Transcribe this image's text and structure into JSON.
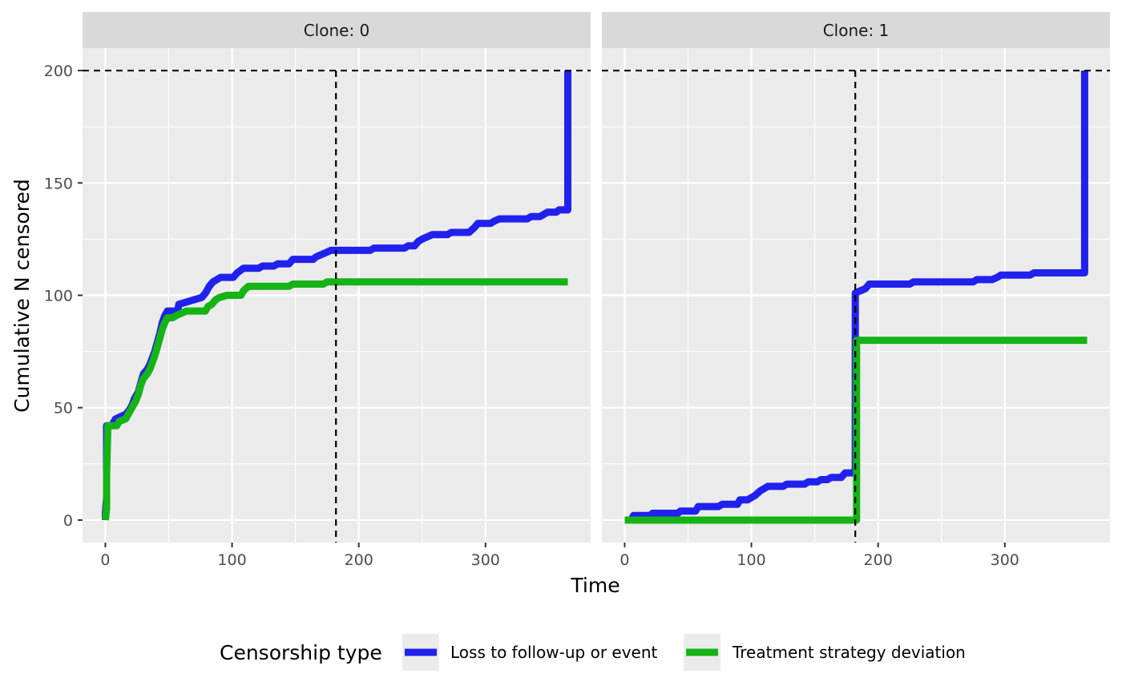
{
  "chart_data": {
    "type": "line",
    "line_shape": "step",
    "xlabel": "Time",
    "ylabel": "Cumulative N censored",
    "xlim": [
      -18,
      383
    ],
    "ylim": [
      -10,
      210
    ],
    "x_ticks": [
      0,
      100,
      200,
      300
    ],
    "y_ticks": [
      0,
      50,
      100,
      150,
      200
    ],
    "grid": true,
    "legend": {
      "title": "Censorship type",
      "position": "bottom",
      "entries": [
        {
          "label": "Loss to follow-up or event",
          "color": "#2121ee"
        },
        {
          "label": "Treatment strategy deviation",
          "color": "#16b316"
        }
      ]
    },
    "reference_lines": {
      "hline": 200,
      "vline": 182
    },
    "panels": [
      {
        "strip": "Clone: 0",
        "series": [
          {
            "name": "Loss to follow-up or event",
            "color": "#2121ee",
            "points": [
              [
                0,
                0
              ],
              [
                0,
                3
              ],
              [
                1,
                10
              ],
              [
                1,
                20
              ],
              [
                1,
                42
              ],
              [
                5,
                42
              ],
              [
                8,
                45
              ],
              [
                12,
                46
              ],
              [
                16,
                47
              ],
              [
                19,
                49
              ],
              [
                21,
                51
              ],
              [
                23,
                54
              ],
              [
                26,
                57
              ],
              [
                28,
                61
              ],
              [
                30,
                65
              ],
              [
                33,
                67
              ],
              [
                35,
                69
              ],
              [
                37,
                72
              ],
              [
                39,
                75
              ],
              [
                41,
                79
              ],
              [
                43,
                83
              ],
              [
                45,
                88
              ],
              [
                47,
                91
              ],
              [
                49,
                93
              ],
              [
                57,
                93
              ],
              [
                58,
                96
              ],
              [
                64,
                97
              ],
              [
                70,
                98
              ],
              [
                76,
                99
              ],
              [
                79,
                101
              ],
              [
                82,
                104
              ],
              [
                85,
                106
              ],
              [
                88,
                107
              ],
              [
                91,
                108
              ],
              [
                101,
                108
              ],
              [
                104,
                110
              ],
              [
                109,
                112
              ],
              [
                121,
                112
              ],
              [
                124,
                113
              ],
              [
                133,
                113
              ],
              [
                136,
                114
              ],
              [
                145,
                114
              ],
              [
                148,
                116
              ],
              [
                164,
                116
              ],
              [
                166,
                117
              ],
              [
                170,
                118
              ],
              [
                174,
                119
              ],
              [
                178,
                120
              ],
              [
                209,
                120
              ],
              [
                212,
                121
              ],
              [
                236,
                121
              ],
              [
                239,
                122
              ],
              [
                244,
                122
              ],
              [
                247,
                124
              ],
              [
                250,
                125
              ],
              [
                254,
                126
              ],
              [
                258,
                127
              ],
              [
                270,
                127
              ],
              [
                273,
                128
              ],
              [
                287,
                128
              ],
              [
                291,
                130
              ],
              [
                294,
                132
              ],
              [
                304,
                132
              ],
              [
                307,
                133
              ],
              [
                311,
                134
              ],
              [
                333,
                134
              ],
              [
                336,
                135
              ],
              [
                343,
                135
              ],
              [
                346,
                136
              ],
              [
                349,
                137
              ],
              [
                356,
                137
              ],
              [
                358,
                138
              ],
              [
                365,
                138
              ],
              [
                365,
                200
              ]
            ]
          },
          {
            "name": "Treatment strategy deviation",
            "color": "#16b316",
            "points": [
              [
                0,
                0
              ],
              [
                1,
                5
              ],
              [
                1,
                20
              ],
              [
                2,
                42
              ],
              [
                9,
                42
              ],
              [
                11,
                44
              ],
              [
                16,
                45
              ],
              [
                18,
                47
              ],
              [
                20,
                49
              ],
              [
                22,
                51
              ],
              [
                24,
                53
              ],
              [
                26,
                56
              ],
              [
                28,
                60
              ],
              [
                30,
                63
              ],
              [
                33,
                65
              ],
              [
                35,
                67
              ],
              [
                37,
                70
              ],
              [
                39,
                73
              ],
              [
                41,
                77
              ],
              [
                43,
                81
              ],
              [
                45,
                85
              ],
              [
                47,
                88
              ],
              [
                49,
                90
              ],
              [
                53,
                90
              ],
              [
                56,
                91
              ],
              [
                60,
                92
              ],
              [
                64,
                93
              ],
              [
                79,
                93
              ],
              [
                81,
                95
              ],
              [
                84,
                96
              ],
              [
                87,
                98
              ],
              [
                90,
                99
              ],
              [
                96,
                100
              ],
              [
                107,
                100
              ],
              [
                109,
                102
              ],
              [
                113,
                104
              ],
              [
                145,
                104
              ],
              [
                148,
                105
              ],
              [
                172,
                105
              ],
              [
                175,
                106
              ],
              [
                365,
                106
              ]
            ]
          }
        ]
      },
      {
        "strip": "Clone: 1",
        "series": [
          {
            "name": "Loss to follow-up or event",
            "color": "#2121ee",
            "points": [
              [
                5,
                0
              ],
              [
                7,
                2
              ],
              [
                20,
                2
              ],
              [
                22,
                3
              ],
              [
                42,
                3
              ],
              [
                44,
                4
              ],
              [
                56,
                4
              ],
              [
                58,
                6
              ],
              [
                74,
                6
              ],
              [
                77,
                7
              ],
              [
                89,
                7
              ],
              [
                91,
                9
              ],
              [
                97,
                9
              ],
              [
                100,
                10
              ],
              [
                103,
                11
              ],
              [
                107,
                13
              ],
              [
                110,
                14
              ],
              [
                113,
                15
              ],
              [
                125,
                15
              ],
              [
                128,
                16
              ],
              [
                142,
                16
              ],
              [
                145,
                17
              ],
              [
                152,
                17
              ],
              [
                155,
                18
              ],
              [
                160,
                18
              ],
              [
                163,
                19
              ],
              [
                171,
                19
              ],
              [
                174,
                21
              ],
              [
                182,
                21
              ],
              [
                182,
                101
              ],
              [
                186,
                102
              ],
              [
                190,
                103
              ],
              [
                193,
                105
              ],
              [
                225,
                105
              ],
              [
                228,
                106
              ],
              [
                275,
                106
              ],
              [
                278,
                107
              ],
              [
                290,
                107
              ],
              [
                294,
                108
              ],
              [
                297,
                109
              ],
              [
                320,
                109
              ],
              [
                323,
                110
              ],
              [
                363,
                110
              ],
              [
                363,
                200
              ]
            ]
          },
          {
            "name": "Treatment strategy deviation",
            "color": "#16b316",
            "points": [
              [
                0,
                0
              ],
              [
                183,
                0
              ],
              [
                183,
                80
              ],
              [
                365,
                80
              ]
            ]
          }
        ]
      }
    ]
  }
}
